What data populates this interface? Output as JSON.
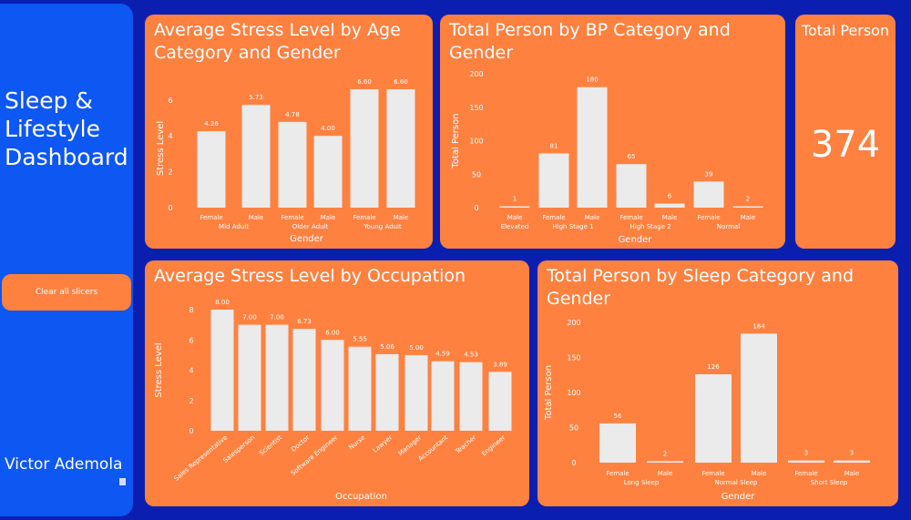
{
  "sidebar": {
    "title_lines": [
      "Sleep &",
      "Lifestyle",
      "Dashboard"
    ],
    "clear_button": "Clear all slicers",
    "author": "Victor Ademola"
  },
  "colors": {
    "background": "#0a1fb0",
    "sidebar": "#0d57f2",
    "card": "#ff8140",
    "bar": "#ebebeb",
    "text": "#ffffff"
  },
  "kpi": {
    "title": "Total Person",
    "value": "374"
  },
  "charts": {
    "age": {
      "title": "Average Stress Level by Age Category and Gender",
      "chart_data": {
        "type": "bar",
        "xlabel": "Gender",
        "ylabel": "Stress Level",
        "ylim": [
          0,
          6.6
        ],
        "yticks": [
          "0",
          "2",
          "4",
          "6"
        ],
        "categories": [
          "Female",
          "Male",
          "Female",
          "Male",
          "Female",
          "Male"
        ],
        "groups": [
          "Mid Adult",
          "Older Adult",
          "Young Adult"
        ],
        "values": [
          4.26,
          5.73,
          4.78,
          4.0,
          6.6,
          6.6
        ],
        "labels": [
          "4.26",
          "5.73",
          "4.78",
          "4.00",
          "6.60",
          "6.60"
        ]
      }
    },
    "bp": {
      "title": "Total Person by BP Category and Gender",
      "chart_data": {
        "type": "bar",
        "xlabel": "Gender",
        "ylabel": "Total Person",
        "ylim": [
          0,
          200
        ],
        "yticks": [
          "0",
          "50",
          "100",
          "150",
          "200"
        ],
        "categories": [
          "Male",
          "Female",
          "Male",
          "Female",
          "Male",
          "Female",
          "Male"
        ],
        "groups": [
          "Elevated",
          "High Stage 1",
          "High Stage 2",
          "Normal"
        ],
        "values": [
          1,
          81,
          180,
          65,
          6,
          39,
          2
        ],
        "labels": [
          "1",
          "81",
          "180",
          "65",
          "6",
          "39",
          "2"
        ]
      }
    },
    "occupation": {
      "title": "Average Stress Level by Occupation",
      "chart_data": {
        "type": "bar",
        "xlabel": "Occupation",
        "ylabel": "Stress Level",
        "ylim": [
          0,
          8
        ],
        "yticks": [
          "0",
          "2",
          "4",
          "6",
          "8"
        ],
        "categories": [
          "Sales Representative",
          "Salesperson",
          "Scientist",
          "Doctor",
          "Software Engineer",
          "Nurse",
          "Lawyer",
          "Manager",
          "Accountant",
          "Teacher",
          "Engineer"
        ],
        "values": [
          8.0,
          7.0,
          7.0,
          6.73,
          6.0,
          5.55,
          5.06,
          5.0,
          4.59,
          4.53,
          3.89
        ],
        "labels": [
          "8.00",
          "7.00",
          "7.00",
          "6.73",
          "6.00",
          "5.55",
          "5.06",
          "5.00",
          "4.59",
          "4.53",
          "3.89"
        ]
      }
    },
    "sleep": {
      "title": "Total Person by Sleep Category and Gender",
      "chart_data": {
        "type": "bar",
        "xlabel": "Gender",
        "ylabel": "Total Person",
        "ylim": [
          0,
          200
        ],
        "yticks": [
          "0",
          "50",
          "100",
          "150",
          "200"
        ],
        "categories": [
          "Female",
          "Male",
          "Female",
          "Male",
          "Female",
          "Male"
        ],
        "groups": [
          "Long Sleep",
          "Normal Sleep",
          "Short Sleep"
        ],
        "values": [
          56,
          2,
          126,
          184,
          3,
          3
        ],
        "labels": [
          "56",
          "2",
          "126",
          "184",
          "3",
          "3"
        ]
      }
    }
  }
}
